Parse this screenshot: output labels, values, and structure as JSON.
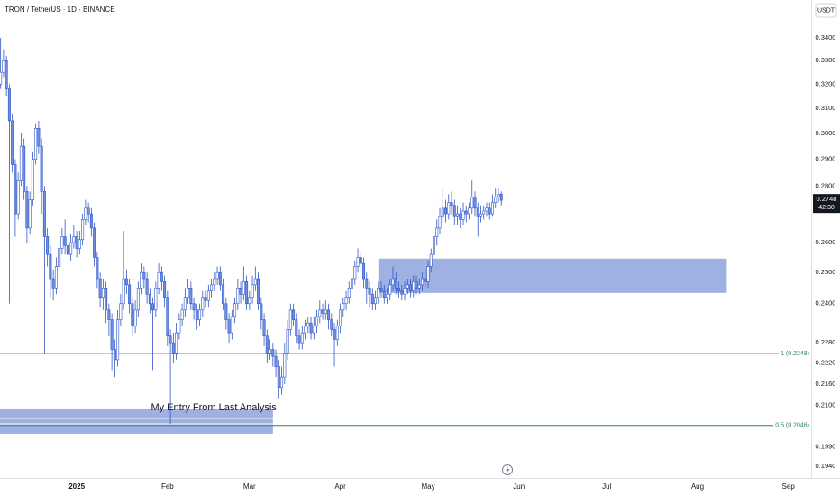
{
  "chart_data": {
    "type": "candlestick",
    "title": "TRON / TetherUS · 1D · BINANCE",
    "currency": "USDT",
    "countdown": "42:30",
    "last_price": {
      "value": 0.2748,
      "label": "0.2748"
    },
    "log_scale": true,
    "grid": false,
    "up_color": "#ffffff",
    "down_color": "#6f8fe0",
    "edge_color": "#2f56c8",
    "ylim": [
      0.191,
      0.3573
    ],
    "yticks": [
      {
        "value": 0.34,
        "label": "0.3400"
      },
      {
        "value": 0.33,
        "label": "0.3300"
      },
      {
        "value": 0.32,
        "label": "0.3200"
      },
      {
        "value": 0.31,
        "label": "0.3100"
      },
      {
        "value": 0.3,
        "label": "0.3000"
      },
      {
        "value": 0.29,
        "label": "0.2900"
      },
      {
        "value": 0.28,
        "label": "0.2800"
      },
      {
        "value": 0.26,
        "label": "0.2600"
      },
      {
        "value": 0.25,
        "label": "0.2500"
      },
      {
        "value": 0.24,
        "label": "0.2400"
      },
      {
        "value": 0.228,
        "label": "0.2280"
      },
      {
        "value": 0.222,
        "label": "0.2220"
      },
      {
        "value": 0.216,
        "label": "0.2160"
      },
      {
        "value": 0.21,
        "label": "0.2100"
      },
      {
        "value": 0.199,
        "label": "0.1990"
      },
      {
        "value": 0.194,
        "label": "0.1940"
      }
    ],
    "xlim": [
      -26.2,
      250.8
    ],
    "xticks": [
      {
        "value": 0,
        "label": "2025"
      },
      {
        "value": 31,
        "label": "Feb"
      },
      {
        "value": 59,
        "label": "Mar"
      },
      {
        "value": 90,
        "label": "Apr"
      },
      {
        "value": 120,
        "label": "May"
      },
      {
        "value": 151,
        "label": "Jun"
      },
      {
        "value": 181,
        "label": "Jul"
      },
      {
        "value": 212,
        "label": "Aug"
      },
      {
        "value": 243,
        "label": "Sep"
      }
    ],
    "levels": [
      {
        "value": 0.2248,
        "label": "1 (0.2248)"
      },
      {
        "value": 0.2046,
        "label": "0.5 (0.2046)"
      }
    ],
    "level_color": "#2e7d78",
    "zones": [
      {
        "ylim": [
          0.2434,
          0.2546
        ],
        "xlim": [
          103,
          222
        ],
        "color": "#8ea2dd"
      },
      {
        "ylim": [
          0.2024,
          0.2092
        ],
        "xlim": [
          -26.2,
          67
        ],
        "color": "#8ea2dd",
        "text": "My Entry From Last Analysis"
      }
    ],
    "x": [
      -26,
      -25,
      -24,
      -23,
      -22,
      -21,
      -20,
      -19,
      -18,
      -17,
      -16,
      -15,
      -14,
      -13,
      -12,
      -11,
      -10,
      -9,
      -8,
      -7,
      -6,
      -5,
      -4,
      -3,
      -2,
      -1,
      0,
      1,
      2,
      3,
      4,
      5,
      6,
      7,
      8,
      9,
      10,
      11,
      12,
      13,
      14,
      15,
      16,
      17,
      18,
      19,
      20,
      21,
      22,
      23,
      24,
      25,
      26,
      27,
      28,
      29,
      30,
      31,
      32,
      33,
      34,
      35,
      36,
      37,
      38,
      39,
      40,
      41,
      42,
      43,
      44,
      45,
      46,
      47,
      48,
      49,
      50,
      51,
      52,
      53,
      54,
      55,
      56,
      57,
      58,
      59,
      60,
      61,
      62,
      63,
      64,
      65,
      66,
      67,
      68,
      69,
      70,
      71,
      72,
      73,
      74,
      75,
      76,
      77,
      78,
      79,
      80,
      81,
      82,
      83,
      84,
      85,
      86,
      87,
      88,
      89,
      90,
      91,
      92,
      93,
      94,
      95,
      96,
      97,
      98,
      99,
      100,
      101,
      102,
      103,
      104,
      105,
      106,
      107,
      108,
      109,
      110,
      111,
      112,
      113,
      114,
      115,
      116,
      117,
      118,
      119,
      120,
      121,
      122,
      123,
      124,
      125,
      126,
      127,
      128,
      129,
      130,
      131,
      132,
      133,
      134,
      135,
      136,
      137,
      138,
      139,
      140,
      141,
      142,
      143,
      144,
      145
    ],
    "candles": [
      [
        0.32,
        0.34,
        0.318,
        0.325
      ],
      [
        0.325,
        0.335,
        0.323,
        0.33
      ],
      [
        0.33,
        0.332,
        0.315,
        0.318
      ],
      [
        0.318,
        0.32,
        0.24,
        0.305
      ],
      [
        0.305,
        0.308,
        0.285,
        0.288
      ],
      [
        0.288,
        0.29,
        0.262,
        0.27
      ],
      [
        0.27,
        0.285,
        0.268,
        0.282
      ],
      [
        0.282,
        0.3,
        0.28,
        0.295
      ],
      [
        0.295,
        0.298,
        0.275,
        0.278
      ],
      [
        0.278,
        0.28,
        0.26,
        0.265
      ],
      [
        0.265,
        0.278,
        0.263,
        0.275
      ],
      [
        0.275,
        0.293,
        0.273,
        0.29
      ],
      [
        0.29,
        0.304,
        0.288,
        0.302
      ],
      [
        0.302,
        0.305,
        0.292,
        0.295
      ],
      [
        0.295,
        0.298,
        0.27,
        0.278
      ],
      [
        0.278,
        0.28,
        0.225,
        0.262
      ],
      [
        0.262,
        0.265,
        0.252,
        0.256
      ],
      [
        0.256,
        0.259,
        0.242,
        0.248
      ],
      [
        0.248,
        0.251,
        0.241,
        0.245
      ],
      [
        0.245,
        0.255,
        0.243,
        0.252
      ],
      [
        0.252,
        0.261,
        0.25,
        0.258
      ],
      [
        0.258,
        0.265,
        0.256,
        0.262
      ],
      [
        0.262,
        0.268,
        0.256,
        0.259
      ],
      [
        0.259,
        0.262,
        0.253,
        0.256
      ],
      [
        0.256,
        0.263,
        0.254,
        0.26
      ],
      [
        0.26,
        0.266,
        0.258,
        0.262
      ],
      [
        0.262,
        0.264,
        0.255,
        0.258
      ],
      [
        0.258,
        0.264,
        0.256,
        0.261
      ],
      [
        0.261,
        0.27,
        0.259,
        0.268
      ],
      [
        0.268,
        0.275,
        0.266,
        0.272
      ],
      [
        0.272,
        0.274,
        0.267,
        0.27
      ],
      [
        0.27,
        0.272,
        0.262,
        0.265
      ],
      [
        0.265,
        0.267,
        0.252,
        0.255
      ],
      [
        0.255,
        0.257,
        0.245,
        0.248
      ],
      [
        0.248,
        0.25,
        0.239,
        0.242
      ],
      [
        0.242,
        0.248,
        0.238,
        0.245
      ],
      [
        0.245,
        0.247,
        0.234,
        0.238
      ],
      [
        0.238,
        0.24,
        0.23,
        0.235
      ],
      [
        0.235,
        0.237,
        0.22,
        0.226
      ],
      [
        0.226,
        0.229,
        0.218,
        0.223
      ],
      [
        0.223,
        0.238,
        0.221,
        0.235
      ],
      [
        0.235,
        0.243,
        0.233,
        0.24
      ],
      [
        0.24,
        0.264,
        0.238,
        0.248
      ],
      [
        0.248,
        0.251,
        0.243,
        0.246
      ],
      [
        0.246,
        0.248,
        0.237,
        0.24
      ],
      [
        0.24,
        0.242,
        0.23,
        0.233
      ],
      [
        0.233,
        0.241,
        0.231,
        0.238
      ],
      [
        0.238,
        0.247,
        0.236,
        0.245
      ],
      [
        0.245,
        0.253,
        0.243,
        0.25
      ],
      [
        0.25,
        0.252,
        0.245,
        0.248
      ],
      [
        0.248,
        0.25,
        0.24,
        0.243
      ],
      [
        0.243,
        0.245,
        0.237,
        0.24
      ],
      [
        0.24,
        0.242,
        0.22,
        0.238
      ],
      [
        0.238,
        0.247,
        0.236,
        0.245
      ],
      [
        0.245,
        0.253,
        0.243,
        0.25
      ],
      [
        0.25,
        0.252,
        0.244,
        0.247
      ],
      [
        0.247,
        0.249,
        0.239,
        0.242
      ],
      [
        0.242,
        0.244,
        0.227,
        0.23
      ],
      [
        0.23,
        0.232,
        0.205,
        0.228
      ],
      [
        0.228,
        0.231,
        0.222,
        0.225
      ],
      [
        0.225,
        0.234,
        0.223,
        0.231
      ],
      [
        0.231,
        0.237,
        0.229,
        0.235
      ],
      [
        0.235,
        0.24,
        0.233,
        0.238
      ],
      [
        0.238,
        0.245,
        0.236,
        0.242
      ],
      [
        0.242,
        0.248,
        0.24,
        0.245
      ],
      [
        0.245,
        0.247,
        0.238,
        0.24
      ],
      [
        0.24,
        0.242,
        0.235,
        0.238
      ],
      [
        0.238,
        0.24,
        0.232,
        0.235
      ],
      [
        0.235,
        0.24,
        0.233,
        0.238
      ],
      [
        0.238,
        0.244,
        0.236,
        0.242
      ],
      [
        0.242,
        0.244,
        0.239,
        0.241
      ],
      [
        0.241,
        0.246,
        0.239,
        0.244
      ],
      [
        0.244,
        0.248,
        0.242,
        0.246
      ],
      [
        0.246,
        0.25,
        0.244,
        0.248
      ],
      [
        0.248,
        0.252,
        0.246,
        0.25
      ],
      [
        0.25,
        0.252,
        0.244,
        0.246
      ],
      [
        0.246,
        0.248,
        0.238,
        0.24
      ],
      [
        0.24,
        0.242,
        0.232,
        0.235
      ],
      [
        0.235,
        0.237,
        0.228,
        0.231
      ],
      [
        0.231,
        0.238,
        0.229,
        0.236
      ],
      [
        0.236,
        0.242,
        0.234,
        0.24
      ],
      [
        0.24,
        0.248,
        0.238,
        0.245
      ],
      [
        0.245,
        0.247,
        0.24,
        0.243
      ],
      [
        0.243,
        0.252,
        0.241,
        0.247
      ],
      [
        0.247,
        0.249,
        0.238,
        0.24
      ],
      [
        0.24,
        0.244,
        0.238,
        0.242
      ],
      [
        0.242,
        0.249,
        0.24,
        0.246
      ],
      [
        0.246,
        0.252,
        0.244,
        0.248
      ],
      [
        0.248,
        0.25,
        0.238,
        0.24
      ],
      [
        0.24,
        0.242,
        0.232,
        0.235
      ],
      [
        0.235,
        0.237,
        0.227,
        0.23
      ],
      [
        0.23,
        0.232,
        0.222,
        0.225
      ],
      [
        0.225,
        0.229,
        0.223,
        0.226
      ],
      [
        0.226,
        0.228,
        0.221,
        0.224
      ],
      [
        0.224,
        0.226,
        0.218,
        0.221
      ],
      [
        0.221,
        0.223,
        0.212,
        0.215
      ],
      [
        0.215,
        0.221,
        0.213,
        0.218
      ],
      [
        0.218,
        0.228,
        0.216,
        0.225
      ],
      [
        0.225,
        0.235,
        0.223,
        0.232
      ],
      [
        0.232,
        0.24,
        0.23,
        0.238
      ],
      [
        0.238,
        0.24,
        0.233,
        0.235
      ],
      [
        0.235,
        0.237,
        0.228,
        0.23
      ],
      [
        0.23,
        0.232,
        0.226,
        0.228
      ],
      [
        0.228,
        0.233,
        0.226,
        0.231
      ],
      [
        0.231,
        0.235,
        0.229,
        0.233
      ],
      [
        0.233,
        0.236,
        0.231,
        0.234
      ],
      [
        0.234,
        0.236,
        0.229,
        0.231
      ],
      [
        0.231,
        0.236,
        0.229,
        0.233
      ],
      [
        0.233,
        0.238,
        0.231,
        0.236
      ],
      [
        0.236,
        0.241,
        0.234,
        0.238
      ],
      [
        0.238,
        0.24,
        0.235,
        0.237
      ],
      [
        0.237,
        0.241,
        0.235,
        0.238
      ],
      [
        0.238,
        0.24,
        0.232,
        0.235
      ],
      [
        0.235,
        0.237,
        0.23,
        0.232
      ],
      [
        0.232,
        0.234,
        0.221,
        0.229
      ],
      [
        0.229,
        0.235,
        0.227,
        0.233
      ],
      [
        0.233,
        0.24,
        0.231,
        0.238
      ],
      [
        0.238,
        0.242,
        0.236,
        0.24
      ],
      [
        0.24,
        0.244,
        0.238,
        0.242
      ],
      [
        0.242,
        0.247,
        0.24,
        0.245
      ],
      [
        0.245,
        0.25,
        0.243,
        0.248
      ],
      [
        0.248,
        0.254,
        0.246,
        0.252
      ],
      [
        0.252,
        0.258,
        0.25,
        0.255
      ],
      [
        0.255,
        0.257,
        0.25,
        0.253
      ],
      [
        0.253,
        0.255,
        0.245,
        0.248
      ],
      [
        0.248,
        0.25,
        0.24,
        0.245
      ],
      [
        0.245,
        0.247,
        0.239,
        0.243
      ],
      [
        0.243,
        0.245,
        0.238,
        0.24
      ],
      [
        0.24,
        0.244,
        0.238,
        0.242
      ],
      [
        0.242,
        0.247,
        0.24,
        0.245
      ],
      [
        0.245,
        0.247,
        0.242,
        0.244
      ],
      [
        0.244,
        0.246,
        0.24,
        0.242
      ],
      [
        0.242,
        0.245,
        0.24,
        0.243
      ],
      [
        0.243,
        0.248,
        0.241,
        0.246
      ],
      [
        0.246,
        0.252,
        0.244,
        0.248
      ],
      [
        0.248,
        0.25,
        0.243,
        0.245
      ],
      [
        0.245,
        0.247,
        0.242,
        0.244
      ],
      [
        0.244,
        0.246,
        0.241,
        0.243
      ],
      [
        0.243,
        0.247,
        0.241,
        0.245
      ],
      [
        0.245,
        0.248,
        0.243,
        0.246
      ],
      [
        0.246,
        0.248,
        0.242,
        0.244
      ],
      [
        0.244,
        0.249,
        0.242,
        0.247
      ],
      [
        0.247,
        0.249,
        0.243,
        0.245
      ],
      [
        0.245,
        0.248,
        0.243,
        0.246
      ],
      [
        0.246,
        0.25,
        0.244,
        0.248
      ],
      [
        0.248,
        0.251,
        0.245,
        0.247
      ],
      [
        0.247,
        0.254,
        0.245,
        0.252
      ],
      [
        0.252,
        0.258,
        0.25,
        0.256
      ],
      [
        0.256,
        0.264,
        0.254,
        0.262
      ],
      [
        0.262,
        0.268,
        0.259,
        0.265
      ],
      [
        0.265,
        0.272,
        0.263,
        0.269
      ],
      [
        0.269,
        0.279,
        0.267,
        0.272
      ],
      [
        0.272,
        0.275,
        0.267,
        0.27
      ],
      [
        0.27,
        0.277,
        0.268,
        0.274
      ],
      [
        0.274,
        0.278,
        0.27,
        0.273
      ],
      [
        0.273,
        0.275,
        0.266,
        0.269
      ],
      [
        0.269,
        0.273,
        0.266,
        0.27
      ],
      [
        0.27,
        0.272,
        0.265,
        0.268
      ],
      [
        0.268,
        0.274,
        0.266,
        0.271
      ],
      [
        0.271,
        0.273,
        0.267,
        0.27
      ],
      [
        0.27,
        0.274,
        0.268,
        0.272
      ],
      [
        0.272,
        0.282,
        0.27,
        0.276
      ],
      [
        0.276,
        0.278,
        0.269,
        0.272
      ],
      [
        0.272,
        0.274,
        0.262,
        0.269
      ],
      [
        0.269,
        0.273,
        0.267,
        0.27
      ],
      [
        0.27,
        0.273,
        0.268,
        0.271
      ],
      [
        0.271,
        0.274,
        0.269,
        0.272
      ],
      [
        0.272,
        0.274,
        0.268,
        0.27
      ],
      [
        0.27,
        0.277,
        0.269,
        0.274
      ],
      [
        0.274,
        0.279,
        0.272,
        0.276
      ],
      [
        0.276,
        0.279,
        0.274,
        0.277
      ],
      [
        0.277,
        0.278,
        0.273,
        0.2748
      ]
    ]
  }
}
